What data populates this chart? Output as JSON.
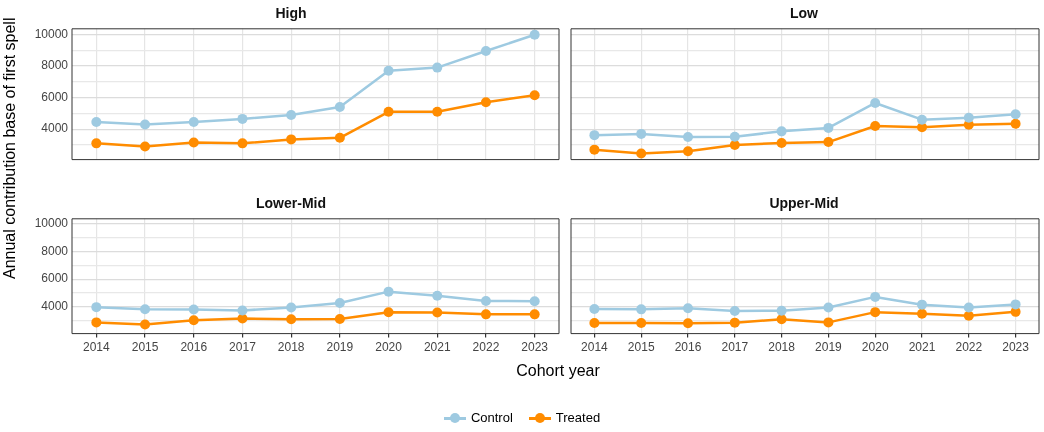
{
  "chart_data": [
    {
      "type": "line",
      "title": "High",
      "ylabel": "Annual contribution base of first spell",
      "categories": [
        "2014",
        "2015",
        "2016",
        "2017",
        "2018",
        "2019",
        "2020",
        "2021",
        "2022",
        "2023"
      ],
      "series": [
        {
          "name": "Control",
          "color": "#9ecae1",
          "values": [
            4450,
            4300,
            4450,
            4650,
            4900,
            5400,
            7700,
            7900,
            8950,
            9980
          ]
        },
        {
          "name": "Treated",
          "color": "#ff8c00",
          "values": [
            3100,
            2900,
            3150,
            3100,
            3350,
            3450,
            5100,
            5100,
            5700,
            6150
          ]
        }
      ],
      "ylim": [
        2070,
        10360
      ],
      "yticks": [
        {
          "value": 3000,
          "label": null
        },
        4000,
        {
          "value": 5000,
          "label": null
        },
        6000,
        {
          "value": 7000,
          "label": null
        },
        8000,
        {
          "value": 9000,
          "label": null
        },
        10000
      ],
      "grid": true,
      "marker": "circle",
      "line_style": "solid",
      "legend": "bottom",
      "tick_labels": "y"
    },
    {
      "type": "line",
      "title": "Low",
      "categories": [
        "2014",
        "2015",
        "2016",
        "2017",
        "2018",
        "2019",
        "2020",
        "2021",
        "2022",
        "2023"
      ],
      "series": [
        {
          "color": "#9ecae1",
          "values": [
            3620,
            3700,
            3500,
            3520,
            3860,
            4080,
            5660,
            4600,
            4720,
            4940
          ]
        },
        {
          "color": "#ff8c00",
          "values": [
            2700,
            2460,
            2600,
            3000,
            3120,
            3180,
            4200,
            4120,
            4280,
            4340
          ]
        }
      ],
      "ylim": [
        2070,
        10360
      ],
      "yticks": [
        {
          "value": 3000,
          "label": null
        },
        4000,
        {
          "value": 5000,
          "label": null
        },
        6000,
        {
          "value": 7000,
          "label": null
        },
        8000,
        {
          "value": 9000,
          "label": null
        },
        10000
      ],
      "grid": true,
      "marker": "circle",
      "line_style": "solid",
      "tick_labels": false
    },
    {
      "type": "line",
      "title": "Lower-Mid",
      "xlabel": "Cohort year",
      "categories": [
        "2014",
        "2015",
        "2016",
        "2017",
        "2018",
        "2019",
        "2020",
        "2021",
        "2022",
        "2023"
      ],
      "series": [
        {
          "color": "#9ecae1",
          "values": [
            3980,
            3830,
            3810,
            3740,
            3960,
            4280,
            5100,
            4800,
            4430,
            4410
          ]
        },
        {
          "color": "#ff8c00",
          "values": [
            2880,
            2730,
            3030,
            3160,
            3100,
            3120,
            3610,
            3590,
            3460,
            3460
          ]
        }
      ],
      "ylim": [
        2070,
        10360
      ],
      "yticks": [
        {
          "value": 3000,
          "label": null
        },
        4000,
        {
          "value": 5000,
          "label": null
        },
        6000,
        {
          "value": 7000,
          "label": null
        },
        8000,
        {
          "value": 9000,
          "label": null
        },
        10000
      ],
      "grid": true,
      "marker": "circle",
      "line_style": "solid"
    },
    {
      "type": "line",
      "title": "Upper-Mid",
      "categories": [
        "2014",
        "2015",
        "2016",
        "2017",
        "2018",
        "2019",
        "2020",
        "2021",
        "2022",
        "2023"
      ],
      "series": [
        {
          "color": "#9ecae1",
          "values": [
            3840,
            3820,
            3900,
            3700,
            3720,
            3960,
            4720,
            4160,
            3960,
            4180
          ]
        },
        {
          "color": "#ff8c00",
          "values": [
            2840,
            2840,
            2820,
            2860,
            3100,
            2880,
            3620,
            3500,
            3360,
            3640
          ]
        }
      ],
      "ylim": [
        2070,
        10360
      ],
      "yticks": [
        {
          "value": 3000,
          "label": null
        },
        4000,
        {
          "value": 5000,
          "label": null
        },
        6000,
        {
          "value": 7000,
          "label": null
        },
        8000,
        {
          "value": 9000,
          "label": null
        },
        10000
      ],
      "grid": true,
      "marker": "circle",
      "line_style": "solid",
      "tick_labels": "x"
    }
  ]
}
